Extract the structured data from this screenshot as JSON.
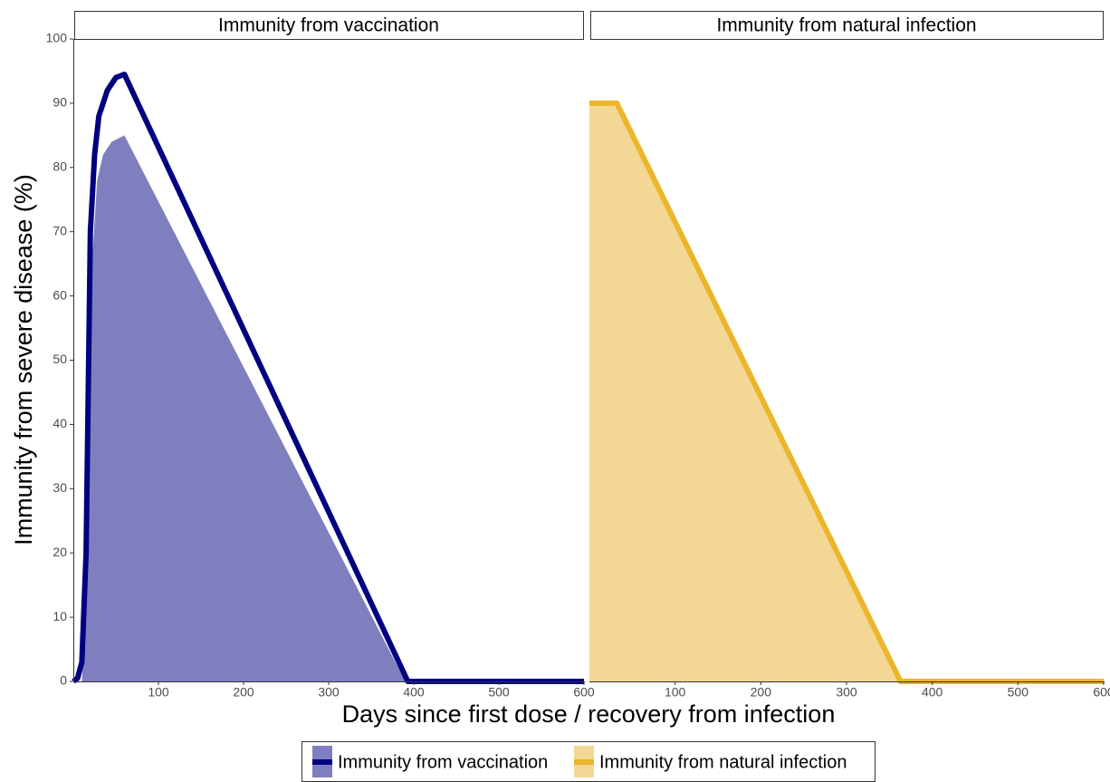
{
  "chart_data": {
    "type": "line",
    "x_label": "Days since first dose / recovery from infection",
    "y_label": "Immunity from severe disease (%)",
    "xlim": [
      0,
      600
    ],
    "xticks": [
      100,
      200,
      300,
      400,
      500,
      600
    ],
    "ylim": [
      0,
      100
    ],
    "yticks": [
      0,
      10,
      20,
      30,
      40,
      50,
      60,
      70,
      80,
      90,
      100
    ],
    "series": [
      {
        "name": "Immunity from vaccination",
        "color": "#000080",
        "fill_color": "#7f7fbf",
        "x": [
          0,
          5,
          10,
          15,
          18,
          20,
          25,
          30,
          40,
          50,
          60,
          393,
          600
        ],
        "values": [
          0,
          0.5,
          3,
          20,
          50,
          70,
          82,
          88,
          92,
          94,
          94.5,
          0,
          0
        ],
        "area_x": [
          0,
          10,
          15,
          18,
          22,
          28,
          35,
          45,
          60,
          390,
          600
        ],
        "area_values": [
          0,
          0,
          10,
          40,
          65,
          78,
          82,
          84,
          85,
          0,
          0
        ]
      },
      {
        "name": "Immunity from natural infection",
        "color": "#ebb62a",
        "fill_color": "#f3d794",
        "x": [
          0,
          32,
          363,
          600
        ],
        "values": [
          90,
          90,
          0,
          0
        ],
        "area_x": [
          0,
          32,
          363,
          600
        ],
        "area_values": [
          90,
          90,
          0,
          0
        ]
      }
    ]
  }
}
